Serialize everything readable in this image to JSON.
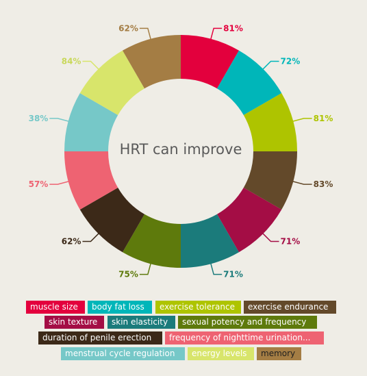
{
  "chart_data": {
    "type": "pie",
    "donut": true,
    "title": "HRT can improve",
    "legend_placement": "bottom",
    "slices": [
      {
        "label": "muscle size",
        "value": 81,
        "display": "81%",
        "color": "#e3003d",
        "text_color": "#ffffff"
      },
      {
        "label": "body fat loss",
        "value": 72,
        "display": "72%",
        "color": "#00b6b9",
        "text_color": "#ffffff"
      },
      {
        "label": "exercise tolerance",
        "value": 81,
        "display": "81%",
        "color": "#aec400",
        "text_color": "#ffffff"
      },
      {
        "label": "exercise endurance",
        "value": 83,
        "display": "83%",
        "color": "#63492a",
        "text_color": "#ffffff"
      },
      {
        "label": "skin texture",
        "value": 71,
        "display": "71%",
        "color": "#a40d45",
        "text_color": "#ffffff"
      },
      {
        "label": "skin elasticity",
        "value": 71,
        "display": "71%",
        "color": "#1b7b7b",
        "text_color": "#ffffff"
      },
      {
        "label": "sexual potency and frequency",
        "value": 75,
        "display": "75%",
        "color": "#5e7a0c",
        "text_color": "#ffffff"
      },
      {
        "label": "duration of penile erection",
        "value": 62,
        "display": "62%",
        "color": "#3c2918",
        "text_color": "#ffffff"
      },
      {
        "label": "frequency of nighttime urination...",
        "value": 57,
        "display": "57%",
        "color": "#ee6372",
        "text_color": "#ffffff"
      },
      {
        "label": "menstrual cycle regulation",
        "value": 38,
        "display": "38%",
        "color": "#76c8c8",
        "text_color": "#ffffff"
      },
      {
        "label": "energy levels",
        "value": 84,
        "display": "84%",
        "color": "#d8e56b",
        "text_color": "#ffffff"
      },
      {
        "label": "memory",
        "value": 62,
        "display": "62%",
        "color": "#a47d44",
        "text_color": "#1f1f1f"
      }
    ]
  }
}
